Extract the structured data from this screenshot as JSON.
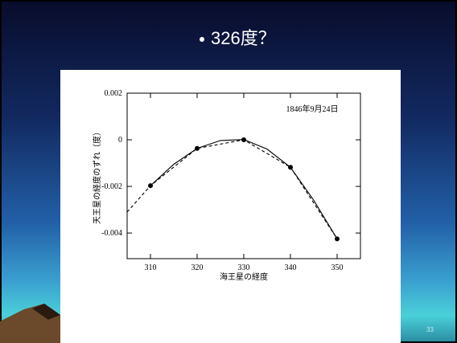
{
  "slide": {
    "title": "326度？",
    "page_number": "33"
  },
  "chart_data": {
    "type": "line",
    "annotation": "1846年9月24日",
    "xlabel": "海王星の経度",
    "ylabel": "天王星の経度のずれ（度）",
    "xlim": [
      305,
      355
    ],
    "xticks": [
      310,
      320,
      330,
      340,
      350
    ],
    "ylim": [
      -0.0051,
      0.002
    ],
    "yticks": [
      0.002,
      0,
      -0.002,
      -0.004
    ],
    "series": [
      {
        "style": "dashed",
        "markers": true,
        "color": "#000000",
        "x": [
          305,
          310,
          320,
          330,
          340,
          350
        ],
        "values": [
          -0.0031,
          -0.00197,
          -0.00037,
          0,
          -0.00118,
          -0.00425
        ]
      },
      {
        "style": "solid",
        "markers": false,
        "color": "#000000",
        "x": [
          310,
          315,
          320,
          325,
          330,
          335,
          340,
          345,
          350
        ],
        "values": [
          -0.00197,
          -0.00105,
          -0.00037,
          -3e-05,
          1e-05,
          -0.0004,
          -0.00118,
          -0.0026,
          -0.00425
        ]
      }
    ]
  }
}
